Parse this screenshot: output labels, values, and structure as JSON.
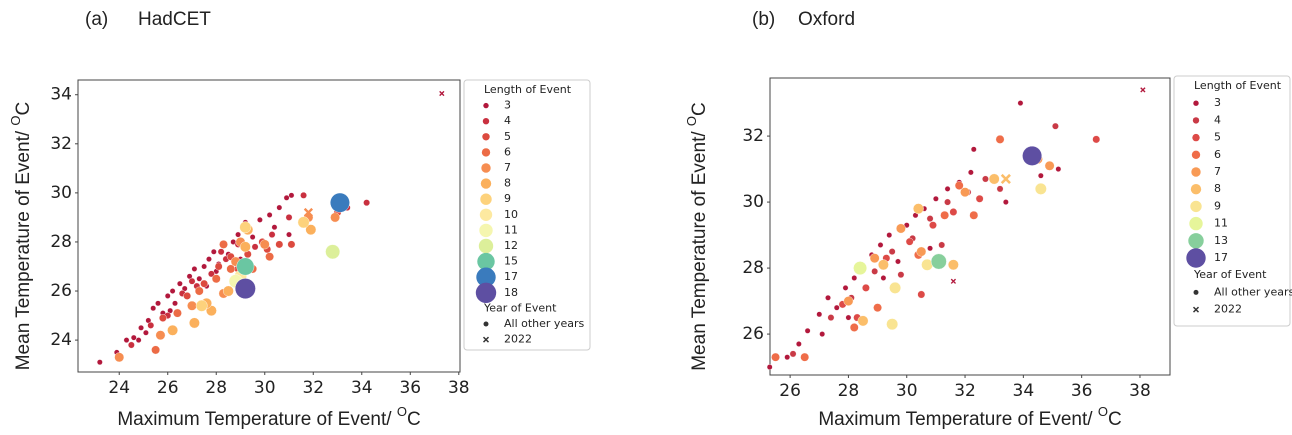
{
  "chart_data": [
    {
      "type": "scatter",
      "panel": "(a)",
      "title": "HadCET",
      "xlabel": {
        "text": "Maximum Temperature of Event/ ",
        "sup": "O",
        "unit": "C"
      },
      "ylabel": {
        "text": "Mean Temperature of Event/ ",
        "sup": "O",
        "unit": "C"
      },
      "xlim": [
        22.3,
        38.05
      ],
      "ylim": [
        22.7,
        34.6
      ],
      "xticks": [
        24,
        26,
        28,
        30,
        32,
        34,
        36,
        38
      ],
      "yticks": [
        24,
        26,
        28,
        30,
        32,
        34
      ],
      "legend": {
        "title": "Length of Event",
        "year_title": "Year of Event",
        "year_labels": [
          "All other years",
          "2022"
        ]
      },
      "series": [
        {
          "length": 3,
          "color": "#b2183c",
          "x": [
            23.2,
            23.9,
            24.3,
            24.6,
            24.9,
            25.2,
            25.4,
            25.6,
            25.8,
            26.0,
            26.2,
            26.3,
            26.5,
            26.7,
            26.9,
            27.1,
            27.3,
            27.5,
            27.7,
            27.9,
            28.1,
            28.3,
            28.5,
            28.7,
            28.9,
            29.2,
            29.5,
            29.8,
            30.2,
            30.6,
            30.9,
            31.1,
            30.4,
            29.0,
            27.6,
            26.1,
            24.8,
            25.1,
            28.0,
            31.0
          ],
          "values": [
            23.1,
            23.5,
            24.0,
            24.1,
            24.5,
            24.8,
            25.3,
            25.5,
            25.1,
            25.8,
            26.0,
            25.5,
            26.3,
            26.1,
            26.6,
            26.9,
            26.5,
            27.0,
            27.3,
            27.6,
            27.1,
            27.9,
            27.5,
            28.0,
            28.3,
            28.8,
            28.2,
            28.9,
            29.1,
            29.4,
            29.8,
            29.9,
            28.6,
            27.3,
            26.2,
            25.2,
            24.0,
            24.3,
            26.8,
            28.3
          ],
          "x_2022": [
            37.3
          ],
          "values_2022": [
            34.05
          ]
        },
        {
          "length": 4,
          "color": "#c9303f",
          "x": [
            24.5,
            25.3,
            26.0,
            26.6,
            27.2,
            27.8,
            28.4,
            28.9,
            29.6,
            30.3,
            31.0,
            33.4,
            34.2,
            31.6,
            28.2,
            27.0
          ],
          "values": [
            23.8,
            24.6,
            25.0,
            25.9,
            26.2,
            26.7,
            27.3,
            27.9,
            27.8,
            28.3,
            29.0,
            29.4,
            29.6,
            29.9,
            27.6,
            26.4
          ],
          "x_2022": [],
          "values_2022": []
        },
        {
          "length": 5,
          "color": "#dc4a3f",
          "x": [
            25.8,
            26.8,
            27.5,
            28.1,
            28.6,
            29.3,
            29.9,
            30.6,
            31.1,
            30.1,
            28.9,
            33.0
          ],
          "values": [
            24.9,
            25.8,
            26.3,
            27.0,
            27.4,
            27.5,
            28.0,
            27.9,
            27.9,
            27.7,
            26.9,
            29.2
          ],
          "x_2022": [],
          "values_2022": []
        },
        {
          "length": 6,
          "color": "#ec6b45",
          "x": [
            25.5,
            26.4,
            27.3,
            28.0,
            28.6,
            29.5,
            30.2,
            28.3
          ],
          "values": [
            23.6,
            25.1,
            26.0,
            26.5,
            26.9,
            26.9,
            27.4,
            27.9
          ],
          "x_2022": [],
          "values_2022": []
        },
        {
          "length": 7,
          "color": "#f68d51",
          "x": [
            24.0,
            25.7,
            27.0,
            28.3,
            29.0,
            30.0,
            32.9,
            31.8,
            28.8
          ],
          "values": [
            23.3,
            24.2,
            25.4,
            25.9,
            28.0,
            27.9,
            29.0,
            29.0,
            27.2
          ],
          "x_2022": [
            31.8
          ],
          "values_2022": [
            29.2
          ]
        },
        {
          "length": 8,
          "color": "#fbb05c",
          "x": [
            26.2,
            27.1,
            27.8,
            28.5,
            29.3,
            31.9,
            29.2,
            27.6
          ],
          "values": [
            24.4,
            24.7,
            25.2,
            26.0,
            28.5,
            28.5,
            27.8,
            25.5
          ],
          "x_2022": [],
          "values_2022": []
        },
        {
          "length": 9,
          "color": "#fdd27c",
          "x": [
            29.2,
            31.6,
            27.4
          ],
          "values": [
            28.6,
            28.8,
            25.4
          ],
          "x_2022": [],
          "values_2022": []
        },
        {
          "length": 10,
          "color": "#fde9a0",
          "x": [
            29.0
          ],
          "values": [
            26.6
          ],
          "x_2022": [],
          "values_2022": []
        },
        {
          "length": 11,
          "color": "#f5f6b0",
          "x": [
            28.8
          ],
          "values": [
            26.4
          ],
          "x_2022": [],
          "values_2022": []
        },
        {
          "length": 12,
          "color": "#dcef9a",
          "x": [
            32.8
          ],
          "values": [
            27.6
          ],
          "x_2022": [],
          "values_2022": []
        },
        {
          "length": 15,
          "color": "#6ac6a2",
          "x": [
            29.2
          ],
          "values": [
            27.0
          ],
          "x_2022": [],
          "values_2022": []
        },
        {
          "length": 17,
          "color": "#3a7bbd",
          "x": [
            33.1
          ],
          "values": [
            29.6
          ],
          "x_2022": [],
          "values_2022": []
        },
        {
          "length": 18,
          "color": "#5e4fa2",
          "x": [
            29.2
          ],
          "values": [
            26.1
          ],
          "x_2022": [],
          "values_2022": []
        }
      ]
    },
    {
      "type": "scatter",
      "panel": "(b)",
      "title": "Oxford",
      "xlabel": {
        "text": "Maximum Temperature of Event/ ",
        "sup": "O",
        "unit": "C"
      },
      "ylabel": {
        "text": "Mean Temperature of Event/ ",
        "sup": "O",
        "unit": "C"
      },
      "xlim": [
        25.31,
        39.03
      ],
      "ylim": [
        24.76,
        33.76
      ],
      "xticks": [
        26,
        28,
        30,
        32,
        34,
        36,
        38
      ],
      "yticks": [
        26,
        28,
        30,
        32
      ],
      "legend": {
        "title": "Length of Event",
        "year_title": "Year of Event",
        "year_labels": [
          "All other years",
          "2022"
        ]
      },
      "series": [
        {
          "length": 3,
          "color": "#b2183c",
          "x": [
            25.3,
            25.9,
            26.3,
            26.6,
            27.0,
            27.3,
            27.6,
            27.9,
            28.2,
            28.5,
            28.8,
            29.1,
            29.4,
            29.7,
            30.0,
            30.3,
            30.6,
            31.0,
            31.4,
            31.8,
            32.3,
            32.2,
            33.9,
            35.2,
            34.6,
            33.4,
            30.8,
            29.2,
            28.0,
            27.1
          ],
          "values": [
            25.0,
            25.3,
            25.7,
            26.1,
            26.6,
            27.1,
            26.8,
            27.4,
            27.7,
            28.0,
            28.4,
            28.7,
            29.0,
            28.2,
            29.3,
            29.6,
            29.8,
            30.1,
            30.4,
            30.6,
            31.6,
            30.9,
            33.0,
            31.0,
            30.8,
            30.0,
            28.6,
            27.7,
            26.5,
            26.0
          ],
          "x_2022": [
            38.1,
            31.6
          ],
          "values_2022": [
            33.4,
            27.6
          ]
        },
        {
          "length": 4,
          "color": "#c93a46",
          "x": [
            26.1,
            27.4,
            28.1,
            28.9,
            29.5,
            30.2,
            30.8,
            31.4,
            32.1,
            32.7,
            35.1,
            31.2,
            29.8,
            33.2
          ],
          "values": [
            25.4,
            26.5,
            27.1,
            27.9,
            28.5,
            28.9,
            29.5,
            30.0,
            30.3,
            30.7,
            32.3,
            28.7,
            27.8,
            30.4
          ],
          "x_2022": [],
          "values_2022": []
        },
        {
          "length": 5,
          "color": "#dd4a47",
          "x": [
            27.8,
            28.6,
            29.3,
            30.1,
            30.9,
            31.6,
            32.5,
            36.5,
            30.5,
            28.3
          ],
          "values": [
            26.9,
            27.4,
            28.3,
            28.8,
            29.3,
            29.7,
            30.1,
            31.9,
            27.2,
            26.5
          ],
          "x_2022": [],
          "values_2022": []
        },
        {
          "length": 6,
          "color": "#ef6d49",
          "x": [
            25.5,
            26.5,
            28.2,
            29.0,
            30.4,
            31.3,
            32.3,
            33.2,
            31.8,
            30.7
          ],
          "values": [
            25.3,
            25.3,
            26.2,
            26.8,
            28.4,
            29.6,
            29.6,
            31.9,
            30.5,
            28.1
          ],
          "x_2022": [],
          "values_2022": []
        },
        {
          "length": 7,
          "color": "#f89a55",
          "x": [
            28.0,
            28.9,
            29.8,
            30.5,
            32.0,
            34.9,
            34.5
          ],
          "values": [
            27.0,
            28.3,
            29.2,
            28.5,
            30.3,
            31.1,
            31.3
          ],
          "x_2022": [],
          "values_2022": []
        },
        {
          "length": 8,
          "color": "#fbbe6a",
          "x": [
            28.5,
            29.2,
            30.4,
            31.6,
            33.0
          ],
          "values": [
            26.4,
            28.1,
            29.8,
            28.1,
            30.7
          ],
          "x_2022": [
            33.4
          ],
          "values_2022": [
            30.7
          ]
        },
        {
          "length": 9,
          "color": "#f9e492",
          "x": [
            29.6,
            30.7,
            34.6,
            29.5
          ],
          "values": [
            27.4,
            28.1,
            30.4,
            26.3
          ],
          "x_2022": [],
          "values_2022": []
        },
        {
          "length": 11,
          "color": "#e6f59a",
          "x": [
            28.4
          ],
          "values": [
            28.0
          ],
          "x_2022": [],
          "values_2022": []
        },
        {
          "length": 13,
          "color": "#87cf9c",
          "x": [
            31.1
          ],
          "values": [
            28.2
          ],
          "x_2022": [],
          "values_2022": []
        },
        {
          "length": 17,
          "color": "#5e4fa2",
          "x": [
            34.3
          ],
          "values": [
            31.4
          ],
          "x_2022": [],
          "values_2022": []
        }
      ]
    }
  ]
}
